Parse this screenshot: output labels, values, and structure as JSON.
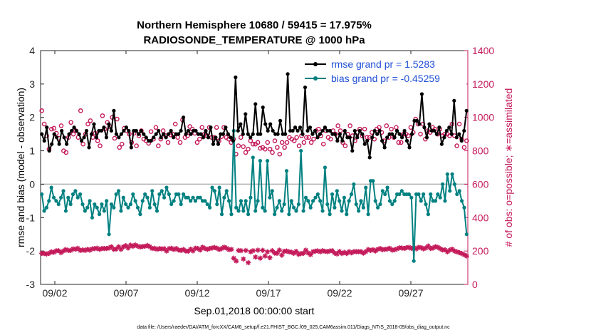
{
  "chart_data": {
    "type": "line",
    "title_line1": "Northern Hemisphere 10680 / 59415 = 17.975%",
    "title_line2": "RADIOSONDE_TEMPERATURE @ 1000 hPa",
    "ylabel_left": "rmse and bias (model - observation)",
    "ylabel_right": "# of obs: o=possible; ∗=assimilated",
    "xlabel": "Sep.01,2018 00:00:00 start",
    "footnote": "data file: /Users/raeder/DAI/ATM_forcXX/CAM6_setup/f.e21.FHIST_BGC.f09_025.CAM6assim.011/Diags_NTrS_2018-09/obs_diag_output.nc",
    "ylim_left": [
      -3,
      4
    ],
    "ylim_right": [
      0,
      1400
    ],
    "xlim_days": [
      0.5,
      30.5
    ],
    "yticks_left": [
      "-3",
      "-2",
      "-1",
      "0",
      "1",
      "2",
      "3",
      "4"
    ],
    "yticks_right": [
      "0",
      "200",
      "400",
      "600",
      "800",
      "1000",
      "1200",
      "1400"
    ],
    "xticks": [
      {
        "day": 1.5,
        "label": "09/02"
      },
      {
        "day": 6.5,
        "label": "09/07"
      },
      {
        "day": 11.5,
        "label": "09/12"
      },
      {
        "day": 16.5,
        "label": "09/17"
      },
      {
        "day": 21.5,
        "label": "09/22"
      },
      {
        "day": 26.5,
        "label": "09/27"
      }
    ],
    "legend": [
      {
        "name": "rmse grand pr = 1.5283",
        "color": "#000000"
      },
      {
        "name": "bias grand pr = -0.45259",
        "color": "#008080"
      }
    ],
    "series": [
      {
        "name": "rmse",
        "color": "#000000",
        "axis": "left",
        "values": [
          1.5,
          1.3,
          1.7,
          1.0,
          1.2,
          1.5,
          1.4,
          1.2,
          1.6,
          1.4,
          1.2,
          1.5,
          1.6,
          1.7,
          1.6,
          1.5,
          1.3,
          1.4,
          1.6,
          1.1,
          1.5,
          1.8,
          1.4,
          1.6,
          1.6,
          1.7,
          1.4,
          1.8,
          1.6,
          2.2,
          1.5,
          1.4,
          1.5,
          1.6,
          1.7,
          1.6,
          1.1,
          1.6,
          1.6,
          1.5,
          1.6,
          1.5,
          1.4,
          1.3,
          1.3,
          1.4,
          1.5,
          1.6,
          1.4,
          1.5,
          1.4,
          1.5,
          1.6,
          1.4,
          1.5,
          1.5,
          1.6,
          2.0,
          1.5,
          1.6,
          1.5,
          1.6,
          1.6,
          1.5,
          1.5,
          1.4,
          1.6,
          1.4,
          1.7,
          1.2,
          1.4,
          1.2,
          1.5,
          1.5,
          1.7,
          1.5,
          1.4,
          1.3,
          3.2,
          1.6,
          1.8,
          1.5,
          2.1,
          1.5,
          1.4,
          1.5,
          2.4,
          1.5,
          1.5,
          2.3,
          1.8,
          1.6,
          1.8,
          1.6,
          1.5,
          1.5,
          1.9,
          1.5,
          1.5,
          3.3,
          1.6,
          1.6,
          1.7,
          1.6,
          1.7,
          1.5,
          2.9,
          1.6,
          1.7,
          1.5,
          1.6,
          1.4,
          1.5,
          1.6,
          1.7,
          1.6,
          1.6,
          1.5,
          1.5,
          1.3,
          1.5,
          1.3,
          1.6,
          1.4,
          1.4,
          1.0,
          1.6,
          1.4,
          1.6,
          1.5,
          1.2,
          1.3,
          0.8,
          1.4,
          1.6,
          1.5,
          1.6,
          1.3,
          1.1,
          1.4,
          1.5,
          1.5,
          1.4,
          1.6,
          1.5,
          1.4,
          1.6,
          1.3,
          1.1,
          1.5,
          1.9,
          1.9,
          1.8,
          2.7,
          1.7,
          1.4,
          1.8,
          1.6,
          1.6,
          1.5,
          1.7,
          1.2,
          1.4,
          1.6,
          1.7,
          1.5,
          2.5,
          1.4,
          1.5,
          1.3,
          1.6,
          2.2
        ]
      },
      {
        "name": "bias",
        "color": "#008080",
        "axis": "left",
        "values": [
          -0.3,
          -0.8,
          -0.7,
          -0.5,
          -0.1,
          -0.4,
          -0.5,
          -0.6,
          -0.4,
          -0.2,
          -0.8,
          -0.4,
          -0.6,
          -0.3,
          -0.2,
          -0.4,
          -0.3,
          -0.6,
          -0.8,
          -0.7,
          -0.5,
          -1.0,
          -0.6,
          -0.7,
          -0.9,
          -0.6,
          -0.8,
          -0.5,
          -1.5,
          -0.6,
          -0.7,
          -0.3,
          -0.2,
          -0.8,
          -0.4,
          -0.6,
          -0.7,
          -0.6,
          -0.3,
          -0.5,
          -0.7,
          -0.9,
          -0.5,
          -0.3,
          -0.4,
          -0.7,
          -0.2,
          -0.6,
          -0.8,
          -0.3,
          -0.2,
          -0.4,
          -0.1,
          -0.3,
          -0.6,
          -0.5,
          -0.3,
          -0.3,
          -0.6,
          -0.3,
          -0.4,
          -0.4,
          -0.5,
          -0.4,
          -0.5,
          -0.4,
          -0.4,
          -0.5,
          -0.5,
          -0.6,
          -0.7,
          -0.1,
          -0.2,
          -0.6,
          -0.1,
          -0.9,
          -0.4,
          -0.2,
          -0.5,
          -0.9,
          1.6,
          -0.7,
          -0.8,
          -0.5,
          -0.8,
          -0.5,
          -0.9,
          -0.4,
          0.8,
          -0.8,
          -0.5,
          0.7,
          -0.7,
          -0.8,
          0.7,
          -0.4,
          -0.2,
          -0.9,
          -0.7,
          -0.5,
          -0.8,
          -0.6,
          0.4,
          -0.9,
          -0.5,
          -0.7,
          -0.8,
          -0.6,
          1.0,
          -0.8,
          -0.4,
          -0.5,
          -0.7,
          -0.5,
          -0.4,
          -0.3,
          -0.5,
          -0.8,
          0.5,
          -0.6,
          -0.9,
          -0.3,
          -0.7,
          -0.2,
          -0.5,
          -0.8,
          -0.4,
          -0.9,
          -0.5,
          -0.3,
          0.0,
          -0.6,
          -0.8,
          -0.5,
          -0.7,
          -0.1,
          -0.9,
          0.1,
          0.1,
          -0.5,
          -0.7,
          -0.6,
          -0.2,
          -0.3,
          -0.1,
          -0.5,
          -0.6,
          -0.5,
          -0.3,
          -0.3,
          -0.2,
          -0.3,
          -0.3,
          -0.3,
          -0.4,
          -2.3,
          -0.3,
          -0.3,
          -0.5,
          -0.3,
          -0.6,
          -0.9,
          -0.3,
          -0.5,
          -0.5,
          -0.3,
          -0.4,
          0.0,
          -0.5,
          0.3,
          -0.2,
          0.3,
          0.0,
          -0.3,
          -0.2,
          -0.5,
          -0.7,
          -1.5
        ]
      },
      {
        "name": "possible",
        "color": "#c41a5a",
        "axis": "right",
        "marker": "o",
        "values": [
          1040,
          960,
          890,
          810,
          930,
          935,
          905,
          875,
          950,
          800,
          790,
          880,
          970,
          900,
          920,
          880,
          1040,
          840,
          900,
          960,
          980,
          880,
          905,
          860,
          830,
          1010,
          930,
          970,
          945,
          1000,
          875,
          990,
          820,
          840,
          935,
          920,
          900,
          850,
          905,
          830,
          890,
          920,
          870,
          860,
          845,
          915,
          870,
          940,
          830,
          870,
          920,
          890,
          850,
          895,
          900,
          960,
          880,
          850,
          985,
          880,
          890,
          945,
          930,
          905,
          850,
          870,
          940,
          900,
          890,
          940,
          880,
          880,
          940,
          860,
          885,
          940,
          880,
          870,
          850,
          870,
          780,
          830,
          880,
          825,
          790,
          810,
          860,
          840,
          840,
          850,
          815,
          820,
          810,
          850,
          810,
          790,
          860,
          820,
          780,
          850,
          820,
          850,
          880,
          870,
          860,
          880,
          830,
          890,
          850,
          880,
          880,
          850,
          870,
          920,
          930,
          890,
          840,
          920,
          880,
          870,
          920,
          900,
          950,
          920,
          850,
          830,
          900,
          950,
          890,
          860,
          910,
          930,
          890,
          930,
          880,
          880,
          910,
          870,
          930,
          940,
          910,
          860,
          950,
          880,
          930,
          880,
          940,
          850,
          850,
          900,
          900,
          890,
          940,
          910,
          990,
          960,
          900,
          960,
          870,
          920,
          910,
          940,
          930,
          900,
          930,
          890,
          900,
          900,
          890,
          960,
          890,
          830,
          960,
          870,
          820,
          860
        ]
      },
      {
        "name": "assimilated",
        "color": "#c41a5a",
        "axis": "right",
        "marker": "*",
        "values": [
          186,
          185,
          182,
          186,
          195,
          192,
          201,
          202,
          190,
          200,
          209,
          203,
          203,
          213,
          210,
          216,
          203,
          207,
          203,
          210,
          205,
          213,
          214,
          217,
          210,
          215,
          215,
          215,
          218,
          225,
          210,
          212,
          225,
          210,
          225,
          232,
          218,
          235,
          228,
          236,
          229,
          224,
          227,
          228,
          233,
          226,
          215,
          216,
          210,
          215,
          212,
          214,
          200,
          214,
          216,
          209,
          215,
          206,
          203,
          209,
          200,
          199,
          211,
          201,
          217,
          215,
          206,
          223,
          215,
          210,
          215,
          218,
          221,
          216,
          209,
          215,
          223,
          217,
          208,
          210,
          157,
          140,
          203,
          202,
          152,
          203,
          130,
          195,
          202,
          164,
          205,
          157,
          204,
          170,
          195,
          160,
          202,
          188,
          186,
          205,
          175,
          198,
          200,
          195,
          193,
          186,
          198,
          180,
          185,
          186,
          205,
          188,
          178,
          196,
          199,
          201,
          195,
          202,
          198,
          196,
          200,
          202,
          188,
          182,
          197,
          185,
          192,
          185,
          196,
          189,
          196,
          196,
          196,
          196,
          187,
          196,
          209,
          203,
          208,
          200,
          210,
          215,
          208,
          210,
          212,
          216,
          205,
          208,
          213,
          219,
          218,
          215,
          220,
          222,
          215,
          219,
          213,
          222,
          220,
          213,
          218,
          230,
          215,
          218,
          226,
          222,
          214,
          206,
          207,
          195,
          205,
          211,
          200,
          195,
          190,
          185,
          178,
          170
        ]
      }
    ]
  }
}
